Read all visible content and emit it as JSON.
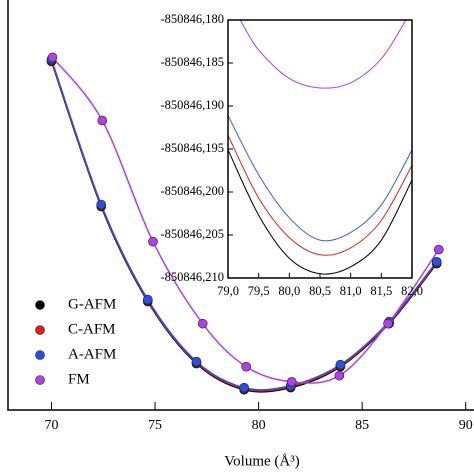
{
  "chart_data": [
    {
      "type": "scatter-line",
      "xlabel": "Volume (Å³)",
      "xlim": [
        67.9,
        90.4
      ],
      "xticks": [
        70,
        75,
        80,
        85,
        90
      ],
      "ylim": [
        -850846.218,
        -850846.058
      ],
      "legend": "lower left",
      "series": [
        {
          "name": "G-AFM",
          "color": "#000000",
          "x": [
            70,
            72.4,
            74.65,
            77,
            79.3,
            81.55,
            83.95,
            86.3,
            88.6
          ],
          "values": [
            -850846.082,
            -850846.1386,
            -850846.1757,
            -850846.1999,
            -850846.2101,
            -850846.2093,
            -850846.2011,
            -850846.1843,
            -850846.1609
          ]
        },
        {
          "name": "C-AFM",
          "color": "#e02020",
          "x": [
            70,
            72.4,
            74.65,
            77,
            79.3,
            81.55,
            83.95,
            86.3,
            88.6
          ],
          "values": [
            -850846.0816,
            -850846.1382,
            -850846.1753,
            -850846.1995,
            -850846.2097,
            -850846.2089,
            -850846.2007,
            -850846.1839,
            -850846.1605
          ]
        },
        {
          "name": "A-AFM",
          "color": "#2b4fe0",
          "x": [
            70,
            72.4,
            74.65,
            77,
            79.3,
            81.55,
            83.95,
            86.3,
            88.6
          ],
          "values": [
            -850846.0812,
            -850846.1378,
            -850846.1749,
            -850846.1991,
            -850846.2093,
            -850846.2085,
            -850846.2003,
            -850846.1835,
            -850846.1601
          ]
        },
        {
          "name": "FM",
          "color": "#b040e8",
          "x": [
            70.05,
            72.45,
            74.9,
            77.3,
            79.4,
            81.6,
            83.9,
            86.25,
            88.7
          ],
          "values": [
            -850846.0804,
            -850846.105,
            -850846.1523,
            -850846.1843,
            -850846.2011,
            -850846.207,
            -850846.2046,
            -850846.1843,
            -850846.1554
          ]
        }
      ]
    },
    {
      "type": "line",
      "xlim": [
        79,
        82
      ],
      "ylim": [
        -850846.21,
        -850846.18
      ],
      "xticks": [
        {
          "value": 79,
          "label": "79,0"
        },
        {
          "value": 79.5,
          "label": "79,5"
        },
        {
          "value": 80,
          "label": "80,0"
        },
        {
          "value": 80.5,
          "label": "80,5"
        },
        {
          "value": 81,
          "label": "81,0"
        },
        {
          "value": 81.5,
          "label": "81,5"
        },
        {
          "value": 82,
          "label": "82,0"
        }
      ],
      "yticks": [
        {
          "value": -850846.18,
          "label": "-850846,180"
        },
        {
          "value": -850846.185,
          "label": "-850846,185"
        },
        {
          "value": -850846.19,
          "label": "-850846,190"
        },
        {
          "value": -850846.195,
          "label": "-850846,195"
        },
        {
          "value": -850846.2,
          "label": "-850846,200"
        },
        {
          "value": -850846.205,
          "label": "-850846,205"
        },
        {
          "value": -850846.21,
          "label": "-850846,210"
        }
      ],
      "series": [
        {
          "color": "#000000",
          "x": [
            79,
            79.5,
            80,
            80.5,
            81,
            81.5,
            82
          ],
          "values": [
            -850846.1951,
            -850846.2027,
            -850846.2077,
            -850846.2095,
            -850846.2087,
            -850846.2056,
            -850846.1986
          ]
        },
        {
          "color": "#e02020",
          "x": [
            79,
            79.5,
            80,
            80.5,
            81,
            81.5,
            82
          ],
          "values": [
            -850846.1934,
            -850846.2007,
            -850846.2053,
            -850846.2073,
            -850846.2065,
            -850846.2033,
            -850846.1969
          ]
        },
        {
          "color": "#3a5fe0",
          "x": [
            79,
            79.5,
            80,
            80.5,
            81,
            81.5,
            82
          ],
          "values": [
            -850846.1911,
            -850846.198,
            -850846.203,
            -850846.2056,
            -850846.2047,
            -850846.2015,
            -850846.1951
          ]
        },
        {
          "color": "#b040e8",
          "x": [
            79.2,
            79.5,
            80,
            80.5,
            81,
            81.5,
            81.9
          ],
          "values": [
            -850846.18,
            -850846.1835,
            -850846.1868,
            -850846.1879,
            -850846.1873,
            -850846.1845,
            -850846.18
          ]
        }
      ]
    }
  ]
}
